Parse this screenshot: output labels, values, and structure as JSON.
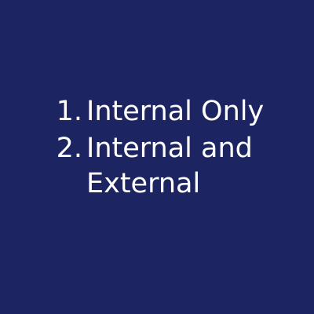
{
  "options": [
    {
      "number": "1.",
      "label": "Internal Only"
    },
    {
      "number": "2.",
      "label": "Internal and External"
    }
  ],
  "colors": {
    "background": "#1c2562",
    "text": "#ffffff"
  }
}
